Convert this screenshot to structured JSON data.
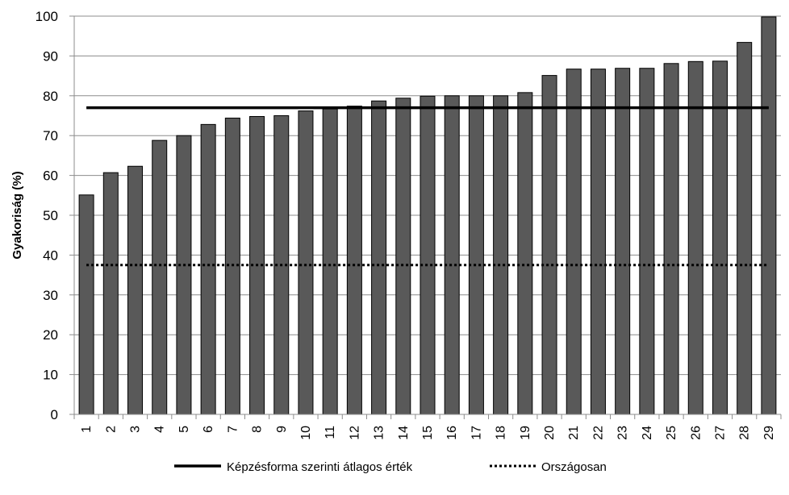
{
  "chart_data": {
    "type": "bar",
    "categories": [
      "1",
      "2",
      "3",
      "4",
      "5",
      "6",
      "7",
      "8",
      "9",
      "10",
      "11",
      "12",
      "13",
      "14",
      "15",
      "16",
      "17",
      "18",
      "19",
      "20",
      "21",
      "22",
      "23",
      "24",
      "25",
      "26",
      "27",
      "28",
      "29"
    ],
    "values": [
      55.1,
      60.7,
      62.3,
      68.8,
      70.0,
      72.8,
      74.4,
      74.8,
      75.0,
      76.2,
      76.7,
      77.4,
      78.7,
      79.4,
      79.9,
      80.0,
      80.0,
      80.0,
      80.8,
      85.1,
      86.7,
      86.7,
      86.9,
      86.9,
      88.1,
      88.6,
      88.7,
      93.4,
      99.8
    ],
    "ylabel": "Gyakoriság (%)",
    "xlabel": "",
    "ylim": [
      0,
      100
    ],
    "yticks": [
      0,
      10,
      20,
      30,
      40,
      50,
      60,
      70,
      80,
      90,
      100
    ],
    "grid": true,
    "bar_color": "#595959",
    "reference_lines": [
      {
        "name": "Képzésforma szerinti átlagos érték",
        "value": 77,
        "style": "solid"
      },
      {
        "name": "Országosan",
        "value": 37.5,
        "style": "dotted"
      }
    ],
    "legend_position": "bottom"
  }
}
